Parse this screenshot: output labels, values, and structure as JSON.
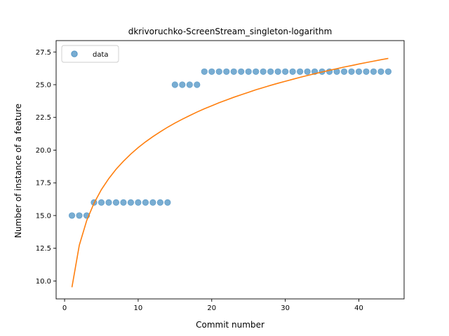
{
  "chart_data": {
    "type": "scatter",
    "title": "dkrivoruchko-ScreenStream_singleton-logarithm",
    "xlabel": "Commit number",
    "ylabel": "Number of instance of a feature",
    "xlim": [
      -1.15,
      46.15
    ],
    "ylim": [
      8.63,
      28.37
    ],
    "xticks": [
      0,
      10,
      20,
      30,
      40
    ],
    "yticks": [
      10.0,
      12.5,
      15.0,
      17.5,
      20.0,
      22.5,
      25.0,
      27.5
    ],
    "grid": false,
    "legend": {
      "placement": "top-left",
      "entries": [
        "data"
      ]
    },
    "colors": {
      "data": "#1f77b4",
      "fit": "#ff7f0e"
    },
    "series": [
      {
        "name": "data",
        "kind": "scatter",
        "x": [
          1,
          2,
          3,
          4,
          5,
          6,
          7,
          8,
          9,
          10,
          11,
          12,
          13,
          14,
          15,
          16,
          17,
          18,
          19,
          20,
          21,
          22,
          23,
          24,
          25,
          26,
          27,
          28,
          29,
          30,
          31,
          32,
          33,
          34,
          35,
          36,
          37,
          38,
          39,
          40,
          41,
          42,
          43,
          44
        ],
        "y": [
          15,
          15,
          15,
          16,
          16,
          16,
          16,
          16,
          16,
          16,
          16,
          16,
          16,
          16,
          25,
          25,
          25,
          25,
          26,
          26,
          26,
          26,
          26,
          26,
          26,
          26,
          26,
          26,
          26,
          26,
          26,
          26,
          26,
          26,
          26,
          26,
          26,
          26,
          26,
          26,
          26,
          26,
          26,
          26
        ]
      },
      {
        "kind": "line",
        "x": [
          1,
          2,
          3,
          4,
          5,
          6,
          7,
          8,
          9,
          10,
          11,
          12,
          13,
          14,
          15,
          16,
          17,
          18,
          19,
          20,
          21,
          22,
          23,
          24,
          25,
          26,
          27,
          28,
          29,
          30,
          31,
          32,
          33,
          34,
          35,
          36,
          37,
          38,
          39,
          40,
          41,
          42,
          43,
          44
        ],
        "y": [
          9.52,
          12.73,
          14.61,
          15.94,
          16.98,
          17.82,
          18.54,
          19.15,
          19.7,
          20.19,
          20.63,
          21.03,
          21.4,
          21.75,
          22.07,
          22.36,
          22.64,
          22.91,
          23.16,
          23.39,
          23.62,
          23.83,
          24.04,
          24.23,
          24.42,
          24.61,
          24.78,
          24.95,
          25.11,
          25.26,
          25.41,
          25.56,
          25.7,
          25.84,
          25.97,
          26.1,
          26.22,
          26.35,
          26.46,
          26.58,
          26.69,
          26.8,
          26.91,
          27.01
        ]
      }
    ]
  }
}
